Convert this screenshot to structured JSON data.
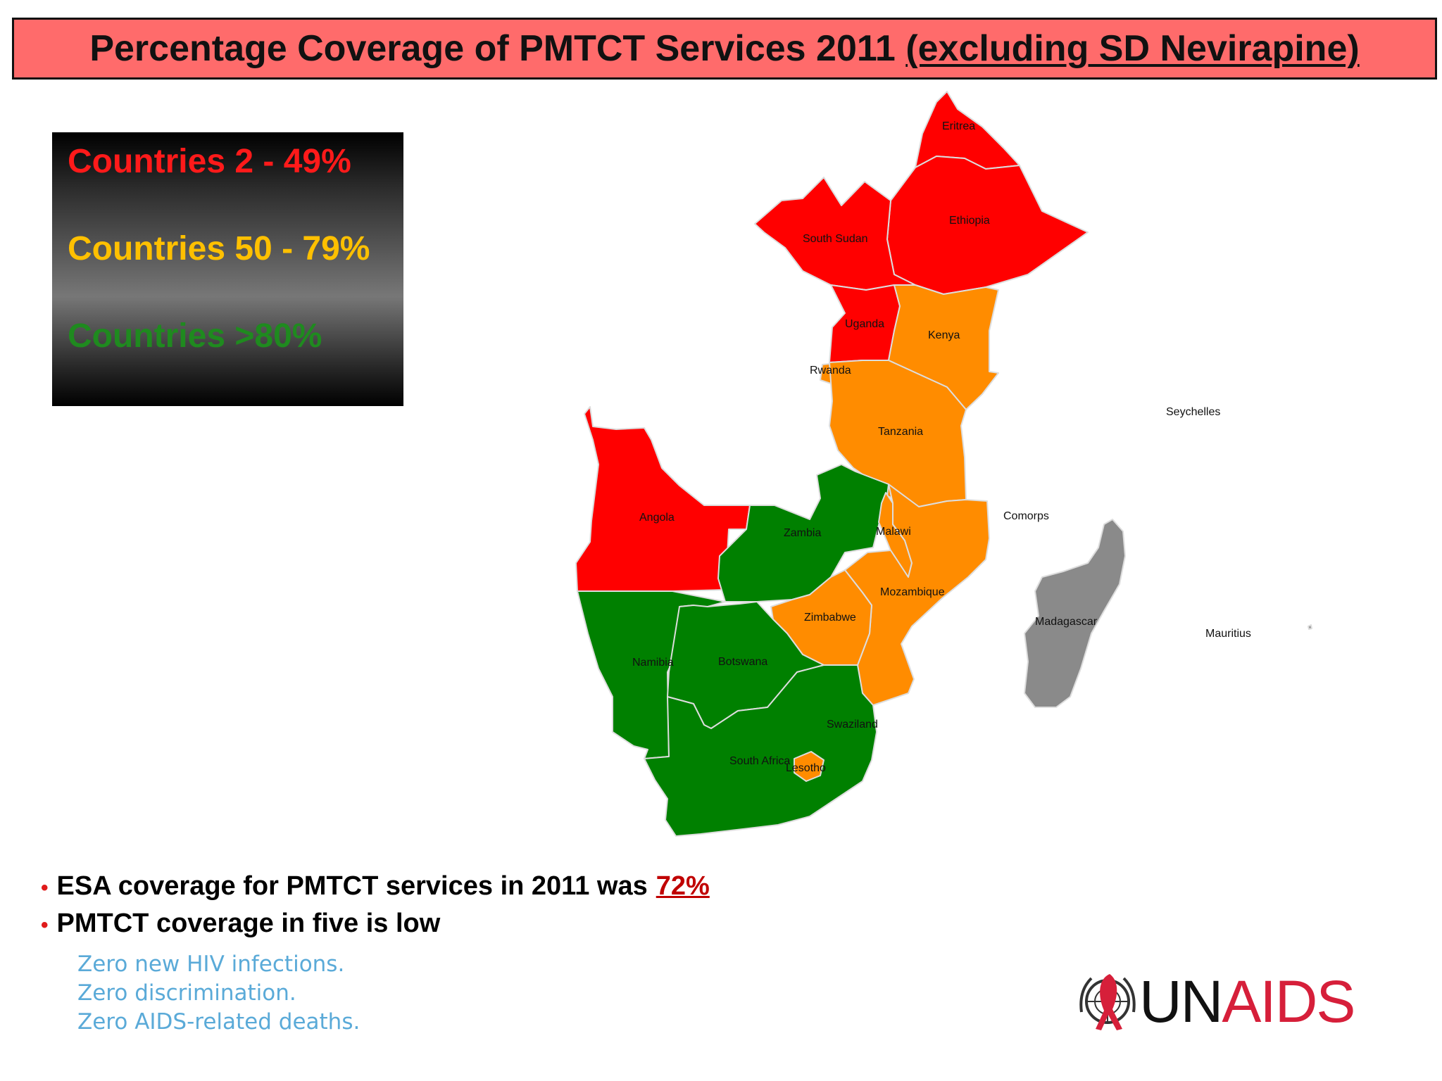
{
  "title": {
    "main": "Percentage Coverage of PMTCT Services 2011",
    "underlined": "(excluding SD Nevirapine)"
  },
  "legend": [
    {
      "label": "Countries 2 - 49%",
      "color": "#ff1a1a",
      "category": "low"
    },
    {
      "label": "Countries 50 - 79%",
      "color": "#ffc000",
      "category": "medium"
    },
    {
      "label": "Countries >80%",
      "color": "#1f8a1f",
      "category": "high"
    }
  ],
  "map": {
    "category_colors": {
      "low": "#ff0000",
      "medium": "#ff8c00",
      "high": "#008000",
      "nodata": "#8a8a8a"
    },
    "countries": [
      {
        "name": "Eritrea",
        "category": "low"
      },
      {
        "name": "Ethiopia",
        "category": "low"
      },
      {
        "name": "South Sudan",
        "category": "low"
      },
      {
        "name": "Uganda",
        "category": "low"
      },
      {
        "name": "Kenya",
        "category": "medium"
      },
      {
        "name": "Rwanda",
        "category": "medium"
      },
      {
        "name": "Tanzania",
        "category": "medium"
      },
      {
        "name": "Angola",
        "category": "low"
      },
      {
        "name": "Zambia",
        "category": "high"
      },
      {
        "name": "Malawi",
        "category": "medium"
      },
      {
        "name": "Mozambique",
        "category": "medium"
      },
      {
        "name": "Zimbabwe",
        "category": "medium"
      },
      {
        "name": "Namibia",
        "category": "high"
      },
      {
        "name": "Botswana",
        "category": "high"
      },
      {
        "name": "Swaziland",
        "category": "high"
      },
      {
        "name": "South Africa",
        "category": "high"
      },
      {
        "name": "Lesotho",
        "category": "medium"
      },
      {
        "name": "Madagascar",
        "category": "nodata"
      },
      {
        "name": "Seychelles",
        "category": "nodata"
      },
      {
        "name": "Comorps",
        "category": "nodata"
      },
      {
        "name": "Mauritius",
        "category": "nodata"
      }
    ]
  },
  "bullets": [
    {
      "text": "ESA coverage for PMTCT services in 2011 was",
      "highlight": "72%"
    },
    {
      "text": "PMTCT coverage in five is low",
      "highlight": ""
    }
  ],
  "slogan": [
    "Zero new HIV infections.",
    "Zero discrimination.",
    "Zero AIDS-related deaths."
  ],
  "logo": {
    "prefix": "UN",
    "suffix": "AIDS",
    "prefix_color": "#111111",
    "suffix_color": "#d61f3a"
  }
}
